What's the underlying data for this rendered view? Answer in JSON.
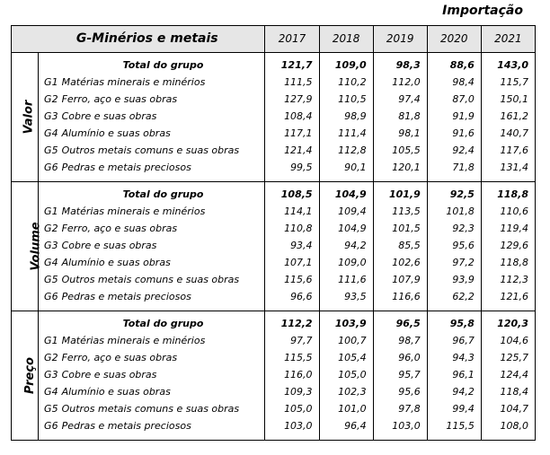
{
  "page_title": "Importação",
  "group_title": "G-Minérios e metais",
  "years": [
    "2017",
    "2018",
    "2019",
    "2020",
    "2021"
  ],
  "sections": [
    {
      "label": "Valor",
      "rows": [
        {
          "code": "",
          "name": "Total do grupo",
          "values": [
            "121,7",
            "109,0",
            "98,3",
            "88,6",
            "143,0"
          ]
        },
        {
          "code": "G1",
          "name": "Matérias minerais e minérios",
          "values": [
            "111,5",
            "110,2",
            "112,0",
            "98,4",
            "115,7"
          ]
        },
        {
          "code": "G2",
          "name": "Ferro, aço e suas obras",
          "values": [
            "127,9",
            "110,5",
            "97,4",
            "87,0",
            "150,1"
          ]
        },
        {
          "code": "G3",
          "name": "Cobre e suas obras",
          "values": [
            "108,4",
            "98,9",
            "81,8",
            "91,9",
            "161,2"
          ]
        },
        {
          "code": "G4",
          "name": "Alumínio e suas obras",
          "values": [
            "117,1",
            "111,4",
            "98,1",
            "91,6",
            "140,7"
          ]
        },
        {
          "code": "G5",
          "name": "Outros metais comuns e suas obras",
          "values": [
            "121,4",
            "112,8",
            "105,5",
            "92,4",
            "117,6"
          ]
        },
        {
          "code": "G6",
          "name": "Pedras e metais preciosos",
          "values": [
            "99,5",
            "90,1",
            "120,1",
            "71,8",
            "131,4"
          ]
        }
      ]
    },
    {
      "label": "Volume",
      "rows": [
        {
          "code": "",
          "name": "Total do grupo",
          "values": [
            "108,5",
            "104,9",
            "101,9",
            "92,5",
            "118,8"
          ]
        },
        {
          "code": "G1",
          "name": "Matérias minerais e minérios",
          "values": [
            "114,1",
            "109,4",
            "113,5",
            "101,8",
            "110,6"
          ]
        },
        {
          "code": "G2",
          "name": "Ferro, aço e suas obras",
          "values": [
            "110,8",
            "104,9",
            "101,5",
            "92,3",
            "119,4"
          ]
        },
        {
          "code": "G3",
          "name": "Cobre e suas obras",
          "values": [
            "93,4",
            "94,2",
            "85,5",
            "95,6",
            "129,6"
          ]
        },
        {
          "code": "G4",
          "name": "Alumínio e suas obras",
          "values": [
            "107,1",
            "109,0",
            "102,6",
            "97,2",
            "118,8"
          ]
        },
        {
          "code": "G5",
          "name": "Outros metais comuns e suas obras",
          "values": [
            "115,6",
            "111,6",
            "107,9",
            "93,9",
            "112,3"
          ]
        },
        {
          "code": "G6",
          "name": "Pedras e metais preciosos",
          "values": [
            "96,6",
            "93,5",
            "116,6",
            "62,2",
            "121,6"
          ]
        }
      ]
    },
    {
      "label": "Preço",
      "rows": [
        {
          "code": "",
          "name": "Total do grupo",
          "values": [
            "112,2",
            "103,9",
            "96,5",
            "95,8",
            "120,3"
          ]
        },
        {
          "code": "G1",
          "name": "Matérias minerais e minérios",
          "values": [
            "97,7",
            "100,7",
            "98,7",
            "96,7",
            "104,6"
          ]
        },
        {
          "code": "G2",
          "name": "Ferro, aço e suas obras",
          "values": [
            "115,5",
            "105,4",
            "96,0",
            "94,3",
            "125,7"
          ]
        },
        {
          "code": "G3",
          "name": "Cobre e suas obras",
          "values": [
            "116,0",
            "105,0",
            "95,7",
            "96,1",
            "124,4"
          ]
        },
        {
          "code": "G4",
          "name": "Alumínio e suas obras",
          "values": [
            "109,3",
            "102,3",
            "95,6",
            "94,2",
            "118,4"
          ]
        },
        {
          "code": "G5",
          "name": "Outros metais comuns e suas obras",
          "values": [
            "105,0",
            "101,0",
            "97,8",
            "99,4",
            "104,7"
          ]
        },
        {
          "code": "G6",
          "name": "Pedras e metais preciosos",
          "values": [
            "103,0",
            "96,4",
            "103,0",
            "115,5",
            "108,0"
          ]
        }
      ]
    }
  ]
}
